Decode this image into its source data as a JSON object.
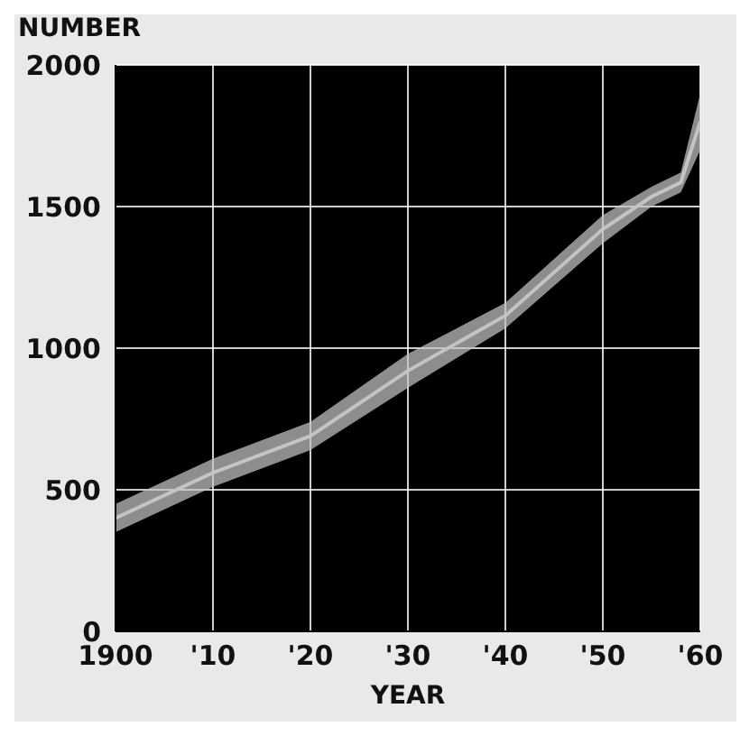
{
  "chart_data": {
    "type": "line",
    "xlabel": "YEAR",
    "ylabel": "NUMBER",
    "x": [
      1900,
      1910,
      1920,
      1930,
      1940,
      1950,
      1955,
      1958,
      1960
    ],
    "series": [
      {
        "color": "#c4c4c4",
        "values": [
          400,
          560,
          690,
          920,
          1115,
          1420,
          1535,
          1585,
          1800
        ],
        "lower": [
          350,
          510,
          640,
          860,
          1070,
          1370,
          1500,
          1550,
          1700
        ],
        "upper": [
          450,
          610,
          740,
          980,
          1160,
          1470,
          1570,
          1620,
          1900
        ]
      }
    ],
    "xlim": [
      1900,
      1960
    ],
    "xticks": [
      {
        "value": 1900,
        "label": "1900"
      },
      {
        "value": 1910,
        "label": "'10"
      },
      {
        "value": 1920,
        "label": "'20"
      },
      {
        "value": 1930,
        "label": "'30"
      },
      {
        "value": 1940,
        "label": "'40"
      },
      {
        "value": 1950,
        "label": "'50"
      },
      {
        "value": 1960,
        "label": "'60"
      }
    ],
    "ylim": [
      0,
      2000
    ],
    "yticks": [
      0,
      500,
      1000,
      1500,
      2000
    ],
    "grid": true,
    "legend": false
  }
}
